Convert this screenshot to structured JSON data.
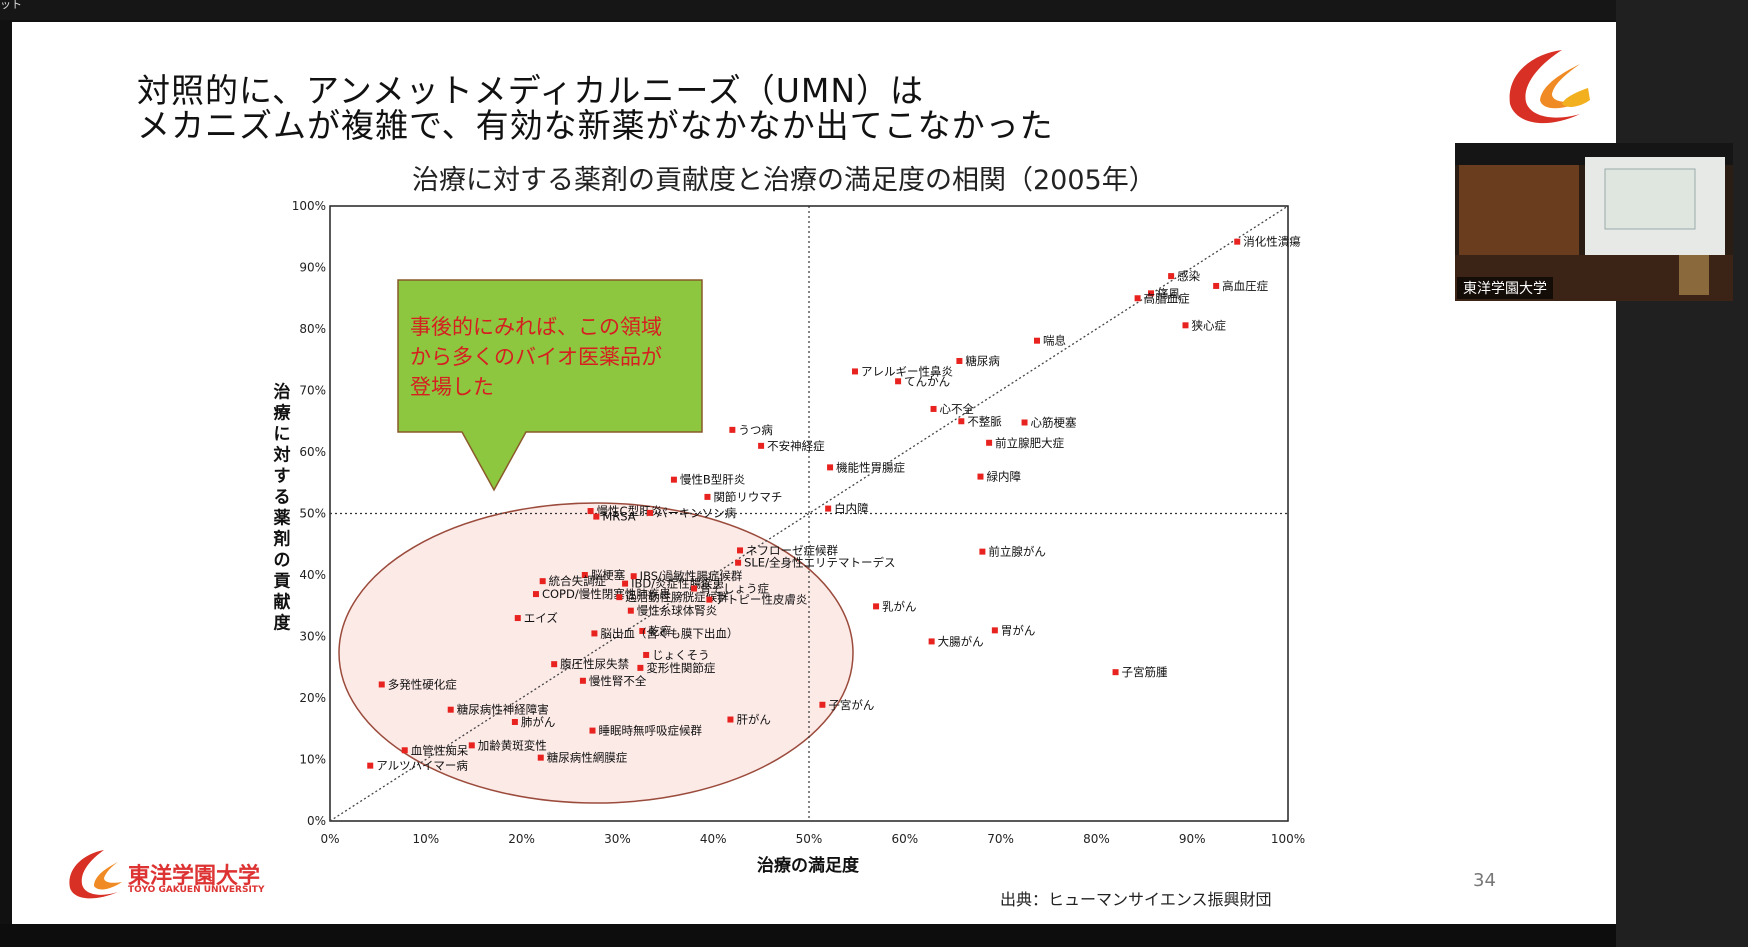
{
  "window": {
    "title_fragment": "ット"
  },
  "slide": {
    "title_line1": "対照的に、アンメットメディカルニーズ（UMN）は",
    "title_line2": "メカニズムが複雑で、有効な新薬がなかなか出てこなかった",
    "chart_title": "治療に対する薬剤の貢献度と治療の満足度の相関（2005年）",
    "callout": "事後的にみれば、この領域から多くのバイオ医薬品が登場した",
    "source": "出典：ヒューマンサイエンス振興財団",
    "page_number": "34",
    "logo_jp": "東洋学園大学",
    "logo_en": "TOYO GAKUEN UNIVERSITY"
  },
  "video": {
    "caption": "東洋学園大学"
  },
  "colors": {
    "point": "#e8231f",
    "callout_fill": "#8dc63f",
    "callout_text": "#d62020",
    "ellipse_fill": "#fbe3df",
    "ellipse_stroke": "#9b4b3c"
  },
  "chart_data": {
    "type": "scatter",
    "xlabel": "治療の満足度",
    "ylabel": "治療に対する薬剤の貢献度",
    "xlim": [
      0,
      100
    ],
    "ylim": [
      0,
      100
    ],
    "x_ticks": [
      "0%",
      "10%",
      "20%",
      "30%",
      "40%",
      "50%",
      "60%",
      "70%",
      "80%",
      "90%",
      "100%"
    ],
    "y_ticks": [
      "0%",
      "10%",
      "20%",
      "30%",
      "40%",
      "50%",
      "60%",
      "70%",
      "80%",
      "90%",
      "100%"
    ],
    "reference_lines": {
      "x": 50,
      "y": 50
    },
    "points": [
      {
        "name": "消化性潰瘍",
        "x": 94.7,
        "y": 94.2
      },
      {
        "name": "感染",
        "x": 87.8,
        "y": 88.6
      },
      {
        "name": "高血圧症",
        "x": 92.5,
        "y": 87.0
      },
      {
        "name": "痛風",
        "x": 85.7,
        "y": 85.8
      },
      {
        "name": "高脂血症",
        "x": 84.3,
        "y": 85.0
      },
      {
        "name": "狭心症",
        "x": 89.3,
        "y": 80.6
      },
      {
        "name": "喘息",
        "x": 73.8,
        "y": 78.1
      },
      {
        "name": "アレルギー性鼻炎",
        "x": 54.8,
        "y": 73.1
      },
      {
        "name": "糖尿病",
        "x": 65.7,
        "y": 74.8
      },
      {
        "name": "てんかん",
        "x": 59.3,
        "y": 71.5
      },
      {
        "name": "心不全",
        "x": 63.0,
        "y": 67.0
      },
      {
        "name": "不整脈",
        "x": 65.9,
        "y": 65.0
      },
      {
        "name": "心筋梗塞",
        "x": 72.5,
        "y": 64.8
      },
      {
        "name": "前立腺肥大症",
        "x": 68.8,
        "y": 61.5
      },
      {
        "name": "うつ病",
        "x": 42.0,
        "y": 63.6
      },
      {
        "name": "不安神経症",
        "x": 45.0,
        "y": 61.0
      },
      {
        "name": "機能性胃腸症",
        "x": 52.2,
        "y": 57.5
      },
      {
        "name": "緑内障",
        "x": 67.9,
        "y": 56.0
      },
      {
        "name": "慢性B型肝炎",
        "x": 35.9,
        "y": 55.5
      },
      {
        "name": "関節リウマチ",
        "x": 39.4,
        "y": 52.7
      },
      {
        "name": "慢性C型肝炎",
        "x": 27.2,
        "y": 50.4
      },
      {
        "name": "パーキンソン病",
        "x": 33.4,
        "y": 50.1
      },
      {
        "name": "白内障",
        "x": 52.0,
        "y": 50.8
      },
      {
        "name": "MRSA",
        "x": 27.8,
        "y": 49.5
      },
      {
        "name": "ネフローゼ症候群",
        "x": 42.8,
        "y": 44.0
      },
      {
        "name": "前立腺がん",
        "x": 68.1,
        "y": 43.8
      },
      {
        "name": "SLE/全身性エリテマトーデス",
        "x": 42.6,
        "y": 42.0
      },
      {
        "name": "脳梗塞",
        "x": 26.6,
        "y": 40.0
      },
      {
        "name": "IBS/過敏性腸症候群",
        "x": 31.7,
        "y": 39.8
      },
      {
        "name": "統合失調症",
        "x": 22.2,
        "y": 39.0
      },
      {
        "name": "IBD/炎症性腸疾患",
        "x": 30.8,
        "y": 38.6
      },
      {
        "name": "骨そしょう症",
        "x": 38.0,
        "y": 37.8
      },
      {
        "name": "COPD/慢性閉塞性肺疾患",
        "x": 21.5,
        "y": 36.9
      },
      {
        "name": "過活動性膀胱症候群",
        "x": 30.2,
        "y": 36.4
      },
      {
        "name": "アトピー性皮膚炎",
        "x": 39.6,
        "y": 36.0
      },
      {
        "name": "慢性糸球体腎炎",
        "x": 31.4,
        "y": 34.2
      },
      {
        "name": "乳がん",
        "x": 57.0,
        "y": 34.9
      },
      {
        "name": "エイズ",
        "x": 19.6,
        "y": 33.0
      },
      {
        "name": "乾癬",
        "x": 32.6,
        "y": 30.9
      },
      {
        "name": "胃がん",
        "x": 69.4,
        "y": 31.0
      },
      {
        "name": "脳出血（含くも膜下出血）",
        "x": 27.6,
        "y": 30.5
      },
      {
        "name": "大腸がん",
        "x": 62.8,
        "y": 29.2
      },
      {
        "name": "じょくそう",
        "x": 33.0,
        "y": 27.0
      },
      {
        "name": "腹圧性尿失禁",
        "x": 23.4,
        "y": 25.5
      },
      {
        "name": "変形性関節症",
        "x": 32.4,
        "y": 24.9
      },
      {
        "name": "子宮筋腫",
        "x": 82.0,
        "y": 24.2
      },
      {
        "name": "多発性硬化症",
        "x": 5.4,
        "y": 22.2
      },
      {
        "name": "慢性腎不全",
        "x": 26.4,
        "y": 22.8
      },
      {
        "name": "子宮がん",
        "x": 51.4,
        "y": 18.9
      },
      {
        "name": "糖尿病性神経障害",
        "x": 12.6,
        "y": 18.1
      },
      {
        "name": "肺がん",
        "x": 19.3,
        "y": 16.1
      },
      {
        "name": "肝がん",
        "x": 41.8,
        "y": 16.5
      },
      {
        "name": "睡眠時無呼吸症候群",
        "x": 27.4,
        "y": 14.7
      },
      {
        "name": "加齢黄斑変性",
        "x": 14.8,
        "y": 12.3
      },
      {
        "name": "糖尿病性網膜症",
        "x": 22.0,
        "y": 10.3
      },
      {
        "name": "血管性痴呆",
        "x": 7.8,
        "y": 11.5
      },
      {
        "name": "アルツハイマー病",
        "x": 4.2,
        "y": 9.0
      }
    ]
  }
}
